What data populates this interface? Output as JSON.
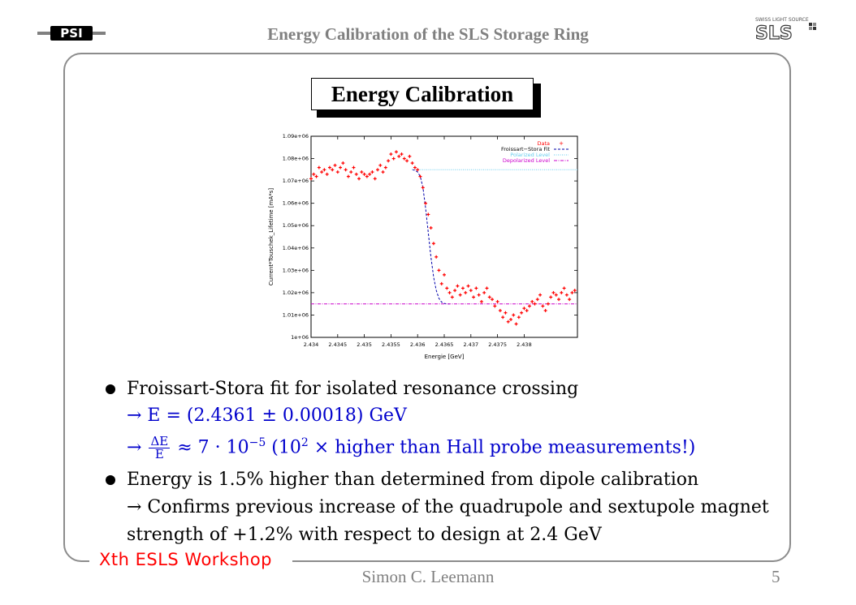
{
  "header": {
    "title": "Energy Calibration of the SLS Storage Ring",
    "left_logo_text": "PSI",
    "right_logo_caption": "SWISS LIGHT SOURCE",
    "right_logo_text": "SLS"
  },
  "slide": {
    "title": "Energy Calibration",
    "bullets": [
      {
        "text": "Froissart-Stora fit for isolated resonance crossing",
        "sublines": [
          "→ E = (2.4361 ± 0.00018) GeV",
          "≈ 7 · 10",
          "−5",
          "(10",
          "2",
          "× higher than Hall probe measurements!)",
          "ΔE",
          "E",
          "→"
        ]
      },
      {
        "text": "Energy is 1.5% higher than determined from dipole calibration",
        "sublines": [
          "→ Confirms previous increase of the quadrupole and sextupole magnet",
          "strength of +1.2% with respect to design at 2.4 GeV"
        ]
      }
    ]
  },
  "footer": {
    "workshop": "Xth ESLS Workshop",
    "author": "Simon C. Leemann",
    "page": "5"
  },
  "colors": {
    "header_gray": "#808080",
    "frame_gray": "#8c8c8c",
    "formula_blue": "#0000cc",
    "workshop_red": "#ff0000",
    "data_red": "#ff0000",
    "fit_blue": "#0000aa",
    "polarized_cyan": "#66ccee",
    "depolarized_magenta": "#cc00cc"
  },
  "chart_data": {
    "type": "scatter",
    "xlabel": "Energie [GeV]",
    "ylabel": "Current*Touschek_Lifetime [mA*s]",
    "xlim": [
      2.434,
      2.439
    ],
    "ylim": [
      1000000,
      1090000
    ],
    "x_ticks": [
      "2.434",
      "2.4345",
      "2.435",
      "2.4355",
      "2.436",
      "2.4365",
      "2.437",
      "2.4375",
      "2.438"
    ],
    "y_ticks": [
      "1e+06",
      "1.01e+06",
      "1.02e+06",
      "1.03e+06",
      "1.04e+06",
      "1.05e+06",
      "1.06e+06",
      "1.07e+06",
      "1.08e+06",
      "1.09e+06"
    ],
    "grid": false,
    "legend_position": "top-right",
    "legend": [
      "Data",
      "Froissart−Stora Fit",
      "Polarized Level",
      "Depolarized Level"
    ],
    "series": [
      {
        "name": "Data",
        "style": "points",
        "x": [
          2.434,
          2.43405,
          2.4341,
          2.43415,
          2.4342,
          2.43425,
          2.4343,
          2.43435,
          2.4344,
          2.43445,
          2.4345,
          2.43455,
          2.4346,
          2.43465,
          2.4347,
          2.43475,
          2.4348,
          2.43485,
          2.4349,
          2.43495,
          2.435,
          2.43505,
          2.4351,
          2.43515,
          2.4352,
          2.43525,
          2.4353,
          2.43535,
          2.4354,
          2.43545,
          2.4355,
          2.43555,
          2.4356,
          2.43565,
          2.4357,
          2.43575,
          2.4358,
          2.43585,
          2.4359,
          2.43595,
          2.436,
          2.43605,
          2.4361,
          2.43615,
          2.4362,
          2.43625,
          2.4363,
          2.43635,
          2.4364,
          2.43645,
          2.4365,
          2.43655,
          2.4366,
          2.43665,
          2.4367,
          2.43675,
          2.4368,
          2.43685,
          2.4369,
          2.43695,
          2.437,
          2.43705,
          2.4371,
          2.43715,
          2.4372,
          2.43725,
          2.4373,
          2.43735,
          2.4374,
          2.43745,
          2.4375,
          2.43755,
          2.4376,
          2.43765,
          2.4377,
          2.43775,
          2.4378,
          2.43785,
          2.4379,
          2.43795,
          2.438,
          2.43805,
          2.4381,
          2.43815,
          2.4382,
          2.43825,
          2.4383,
          2.43835,
          2.4384,
          2.43845,
          2.4385,
          2.43855,
          2.4386,
          2.43865,
          2.4387,
          2.43875,
          2.4388,
          2.43885,
          2.4389,
          2.43895
        ],
        "y": [
          1071000,
          1073000,
          1072000,
          1076000,
          1074000,
          1075000,
          1073000,
          1076000,
          1075000,
          1077000,
          1074000,
          1076000,
          1078000,
          1075000,
          1072000,
          1074000,
          1076000,
          1073000,
          1071000,
          1074000,
          1073000,
          1072000,
          1073000,
          1074000,
          1071000,
          1075000,
          1077000,
          1074000,
          1076000,
          1079000,
          1082000,
          1080000,
          1083000,
          1081000,
          1082000,
          1080000,
          1079000,
          1081000,
          1078000,
          1076000,
          1075000,
          1072000,
          1067000,
          1060000,
          1055000,
          1049000,
          1042000,
          1036000,
          1030000,
          1024000,
          1028000,
          1022000,
          1020000,
          1018000,
          1021000,
          1023000,
          1019000,
          1022000,
          1020000,
          1023000,
          1021000,
          1018000,
          1022000,
          1019000,
          1016000,
          1020000,
          1022000,
          1018000,
          1017000,
          1014000,
          1016000,
          1012000,
          1009000,
          1011000,
          1007000,
          1008000,
          1010000,
          1006000,
          1009000,
          1011000,
          1013000,
          1012000,
          1014000,
          1016000,
          1015000,
          1017000,
          1019000,
          1014000,
          1012000,
          1015000,
          1018000,
          1020000,
          1019000,
          1017000,
          1020000,
          1022000,
          1019000,
          1017000,
          1020000,
          1021000
        ]
      },
      {
        "name": "Froissart−Stora Fit",
        "style": "dashed",
        "x": [
          2.4359,
          2.43595,
          2.436,
          2.43605,
          2.4361,
          2.43615,
          2.4362,
          2.43625,
          2.4363,
          2.43635,
          2.4364,
          2.43645,
          2.4365,
          2.43655,
          2.4366
        ],
        "y": [
          1075000,
          1074800,
          1074000,
          1072000,
          1067000,
          1058000,
          1047000,
          1036000,
          1027000,
          1021000,
          1017500,
          1015800,
          1015200,
          1015000,
          1015000
        ]
      },
      {
        "name": "Polarized Level",
        "style": "dotted",
        "x": [
          2.4359,
          2.439
        ],
        "y": [
          1075000,
          1075000
        ]
      },
      {
        "name": "Depolarized Level",
        "style": "dash-dot",
        "x": [
          2.434,
          2.439
        ],
        "y": [
          1015000,
          1015000
        ]
      }
    ]
  }
}
